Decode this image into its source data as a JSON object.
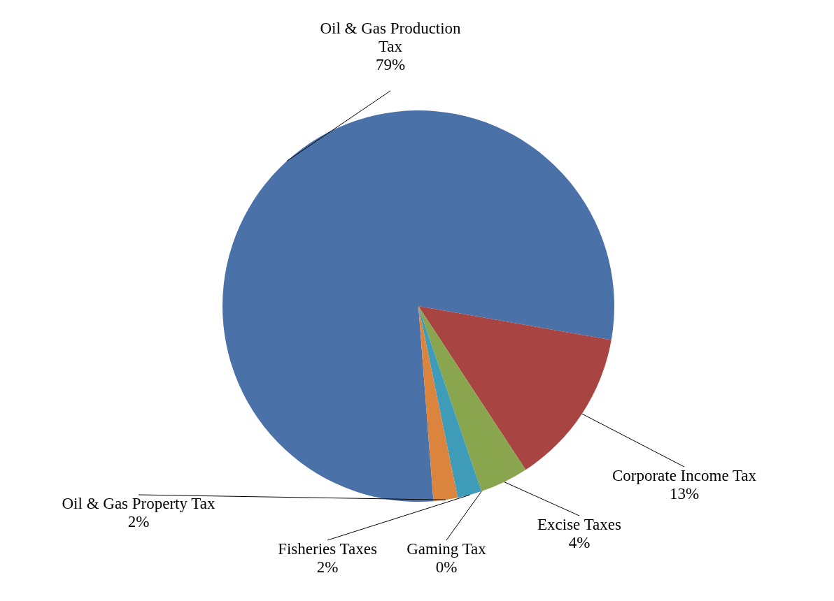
{
  "chart_data": {
    "type": "pie",
    "categories": [
      "Oil & Gas Production Tax",
      "Corporate Income Tax",
      "Excise Taxes",
      "Gaming Tax",
      "Fisheries Taxes",
      "Oil & Gas Property Tax"
    ],
    "values": [
      79,
      13,
      4,
      0,
      2,
      2
    ],
    "colors": [
      "#4a72a8",
      "#a84542",
      "#89a54e",
      "#71588f",
      "#3e9cb8",
      "#db843d"
    ],
    "value_labels": [
      "79%",
      "13%",
      "4%",
      "0%",
      "2%",
      "2%"
    ]
  }
}
